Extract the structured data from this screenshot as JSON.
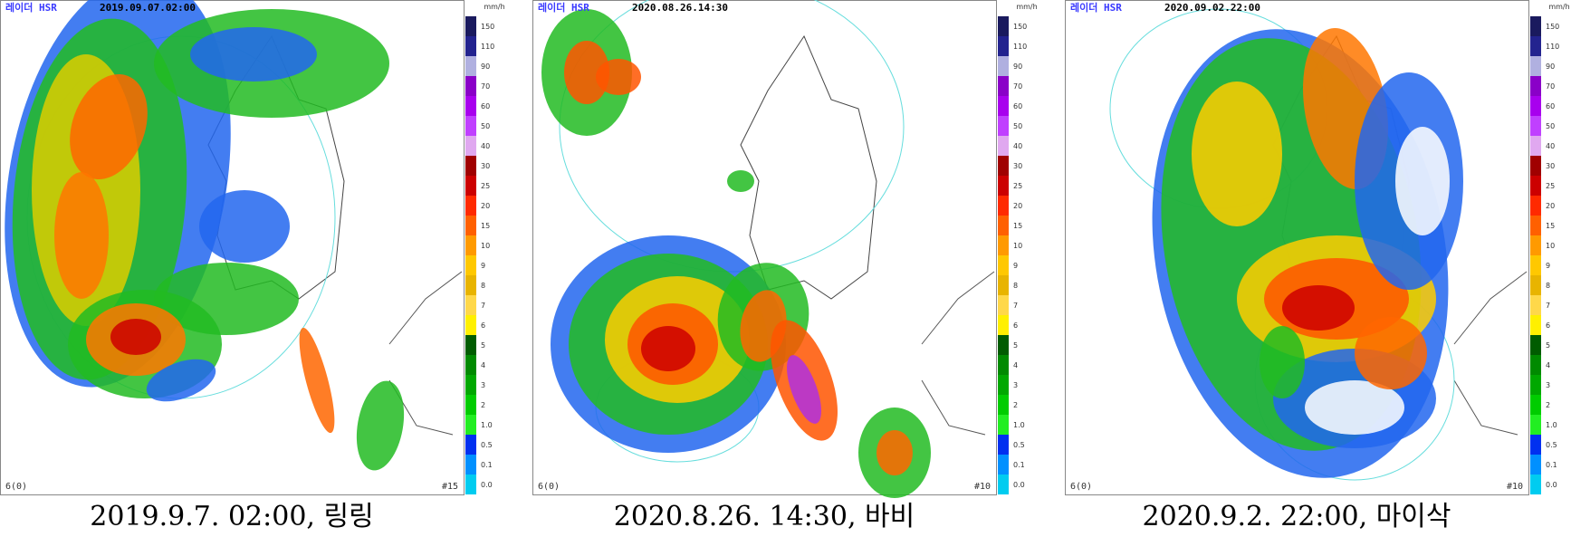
{
  "panels": [
    {
      "product": "레이더 HSR",
      "timestamp": "2019.09.07.02:00",
      "unit": "mm/h",
      "scale": [
        "150",
        "110",
        "90",
        "70",
        "60",
        "50",
        "40",
        "30",
        "25",
        "20",
        "15",
        "10",
        "9",
        "8",
        "7",
        "6",
        "5",
        "4",
        "3",
        "2",
        "1.0",
        "0.5",
        "0.1",
        "0.0"
      ],
      "site": "6(0)",
      "count": "#15",
      "caption": "2019.9.7.  02:00,  링링"
    },
    {
      "product": "레이더 HSR",
      "timestamp": "2020.08.26.14:30",
      "unit": "mm/h",
      "scale": [
        "150",
        "110",
        "90",
        "70",
        "60",
        "50",
        "40",
        "30",
        "25",
        "20",
        "15",
        "10",
        "9",
        "8",
        "7",
        "6",
        "5",
        "4",
        "3",
        "2",
        "1.0",
        "0.5",
        "0.1",
        "0.0"
      ],
      "site": "6(0)",
      "count": "#10",
      "caption": "2020.8.26.  14:30,  바비"
    },
    {
      "product": "레이더 HSR",
      "timestamp": "2020.09.02.22:00",
      "unit": "mm/h",
      "scale": [
        "150",
        "110",
        "90",
        "70",
        "60",
        "50",
        "40",
        "30",
        "25",
        "20",
        "15",
        "10",
        "9",
        "8",
        "7",
        "6",
        "5",
        "4",
        "3",
        "2",
        "1.0",
        "0.5",
        "0.1",
        "0.0"
      ],
      "site": "6(0)",
      "count": "#10",
      "caption": "2020.9.2.  22:00,  마이삭"
    }
  ]
}
